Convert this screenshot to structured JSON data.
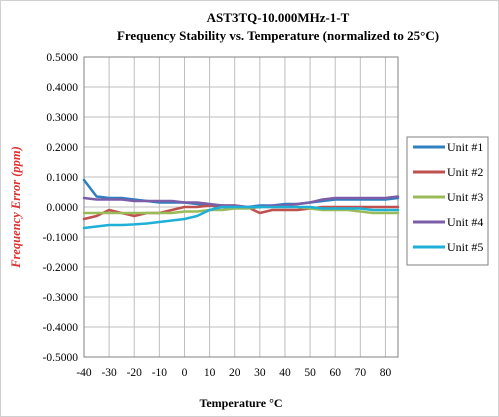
{
  "chart_data": {
    "type": "line",
    "title": "AST3TQ-10.000MHz-1-T",
    "subtitle": "Frequency Stability vs. Temperature (normalized to 25°C)",
    "xlabel": "Temperature °C",
    "ylabel": "Frequency Error (ppm)",
    "xlim": [
      -40,
      85
    ],
    "ylim": [
      -0.5,
      0.5
    ],
    "x_ticks": [
      "-40",
      "-30",
      "-20",
      "-10",
      "0",
      "10",
      "20",
      "30",
      "40",
      "50",
      "60",
      "70",
      "80"
    ],
    "y_ticks": [
      "0.5000",
      "0.4000",
      "0.3000",
      "0.2000",
      "0.1000",
      "0.0000",
      "-0.1000",
      "-0.2000",
      "-0.3000",
      "-0.4000",
      "-0.5000"
    ],
    "grid": true,
    "legend_position": "right",
    "x": [
      -40,
      -35,
      -30,
      -25,
      -20,
      -15,
      -10,
      -5,
      0,
      5,
      10,
      15,
      20,
      25,
      30,
      35,
      40,
      45,
      50,
      55,
      60,
      65,
      70,
      75,
      80,
      85
    ],
    "series": [
      {
        "name": "Unit #1",
        "color": "#2f7fc1",
        "values": [
          0.09,
          0.035,
          0.03,
          0.03,
          0.025,
          0.02,
          0.015,
          0.015,
          0.015,
          0.01,
          0.005,
          0.0,
          -0.002,
          0.0,
          0.005,
          0.005,
          0.01,
          0.01,
          0.015,
          0.02,
          0.025,
          0.025,
          0.025,
          0.025,
          0.025,
          0.03
        ]
      },
      {
        "name": "Unit #2",
        "color": "#c0504d",
        "values": [
          -0.04,
          -0.03,
          -0.01,
          -0.02,
          -0.03,
          -0.02,
          -0.02,
          -0.01,
          0.0,
          0.0,
          0.005,
          0.005,
          0.005,
          0.0,
          -0.02,
          -0.01,
          -0.01,
          -0.01,
          -0.005,
          0.0,
          0.0,
          0.0,
          0.0,
          0.0,
          0.0,
          0.0
        ]
      },
      {
        "name": "Unit #3",
        "color": "#9bbb59",
        "values": [
          -0.02,
          -0.02,
          -0.02,
          -0.02,
          -0.02,
          -0.02,
          -0.02,
          -0.02,
          -0.015,
          -0.015,
          -0.01,
          -0.01,
          -0.005,
          -0.005,
          0.0,
          0.0,
          0.0,
          0.0,
          -0.005,
          -0.01,
          -0.01,
          -0.01,
          -0.015,
          -0.02,
          -0.02,
          -0.02
        ]
      },
      {
        "name": "Unit #4",
        "color": "#7b5ea7",
        "values": [
          0.03,
          0.025,
          0.025,
          0.025,
          0.02,
          0.02,
          0.02,
          0.02,
          0.015,
          0.015,
          0.01,
          0.005,
          0.005,
          0.0,
          0.0,
          0.005,
          0.005,
          0.01,
          0.015,
          0.025,
          0.03,
          0.03,
          0.03,
          0.03,
          0.03,
          0.035
        ]
      },
      {
        "name": "Unit #5",
        "color": "#1fb0d8",
        "values": [
          -0.07,
          -0.065,
          -0.06,
          -0.06,
          -0.058,
          -0.055,
          -0.05,
          -0.045,
          -0.04,
          -0.03,
          -0.01,
          0.0,
          0.0,
          0.0,
          0.0,
          0.0,
          0.0,
          0.0,
          0.0,
          -0.005,
          -0.005,
          -0.005,
          -0.005,
          -0.01,
          -0.01,
          -0.01
        ]
      }
    ]
  }
}
